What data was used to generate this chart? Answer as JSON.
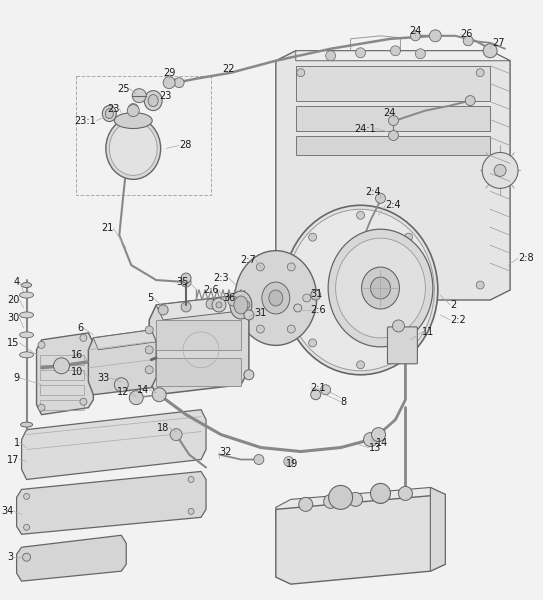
{
  "bg_color": "#f2f2f2",
  "line_color": "#888888",
  "label_color": "#1a1a1a",
  "label_fontsize": 7.0,
  "fig_w": 5.43,
  "fig_h": 6.0,
  "dpi": 100
}
